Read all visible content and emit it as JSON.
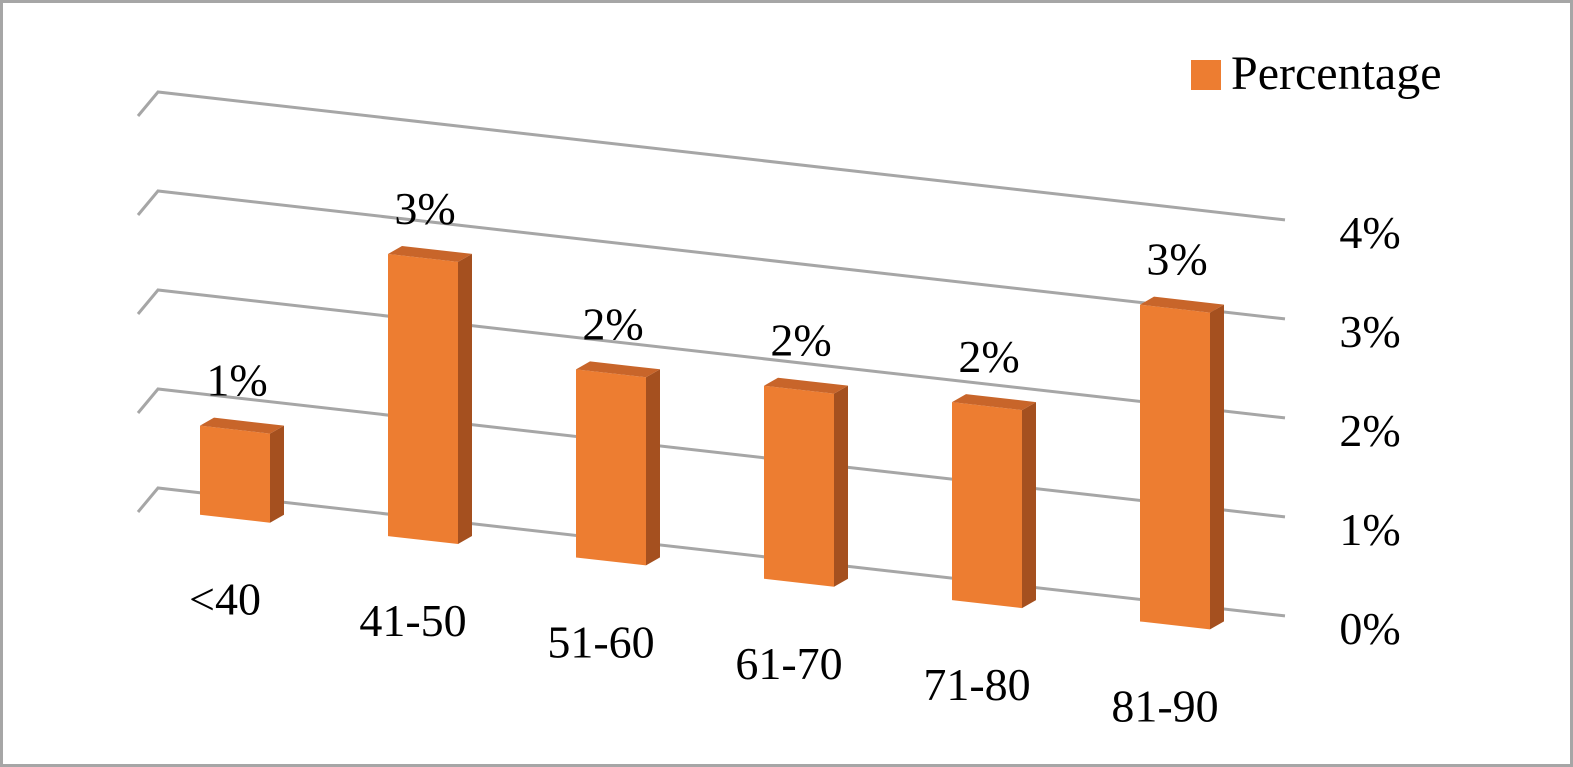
{
  "chart_data": {
    "type": "bar",
    "style": "3d-perspective",
    "categories": [
      "<40",
      "41-50",
      "51-60",
      "61-70",
      "71-80",
      "81-90"
    ],
    "series": [
      {
        "name": "Percentage",
        "values": [
          0.9,
          2.85,
          1.9,
          1.95,
          2.0,
          3.2
        ],
        "data_labels": [
          "1%",
          "3%",
          "2%",
          "2%",
          "2%",
          "3%"
        ]
      }
    ],
    "y_ticks": [
      "0%",
      "1%",
      "2%",
      "3%",
      "4%"
    ],
    "ylim": [
      0,
      4
    ],
    "y_axis_side": "right",
    "grid": true,
    "legend": {
      "position": "top-right"
    },
    "colors": {
      "bar_front": "#ed7d31",
      "bar_side": "#a5501f",
      "bar_top": "#c8652a",
      "grid": "#a6a6a6",
      "frame": "#a6a6a6"
    }
  }
}
